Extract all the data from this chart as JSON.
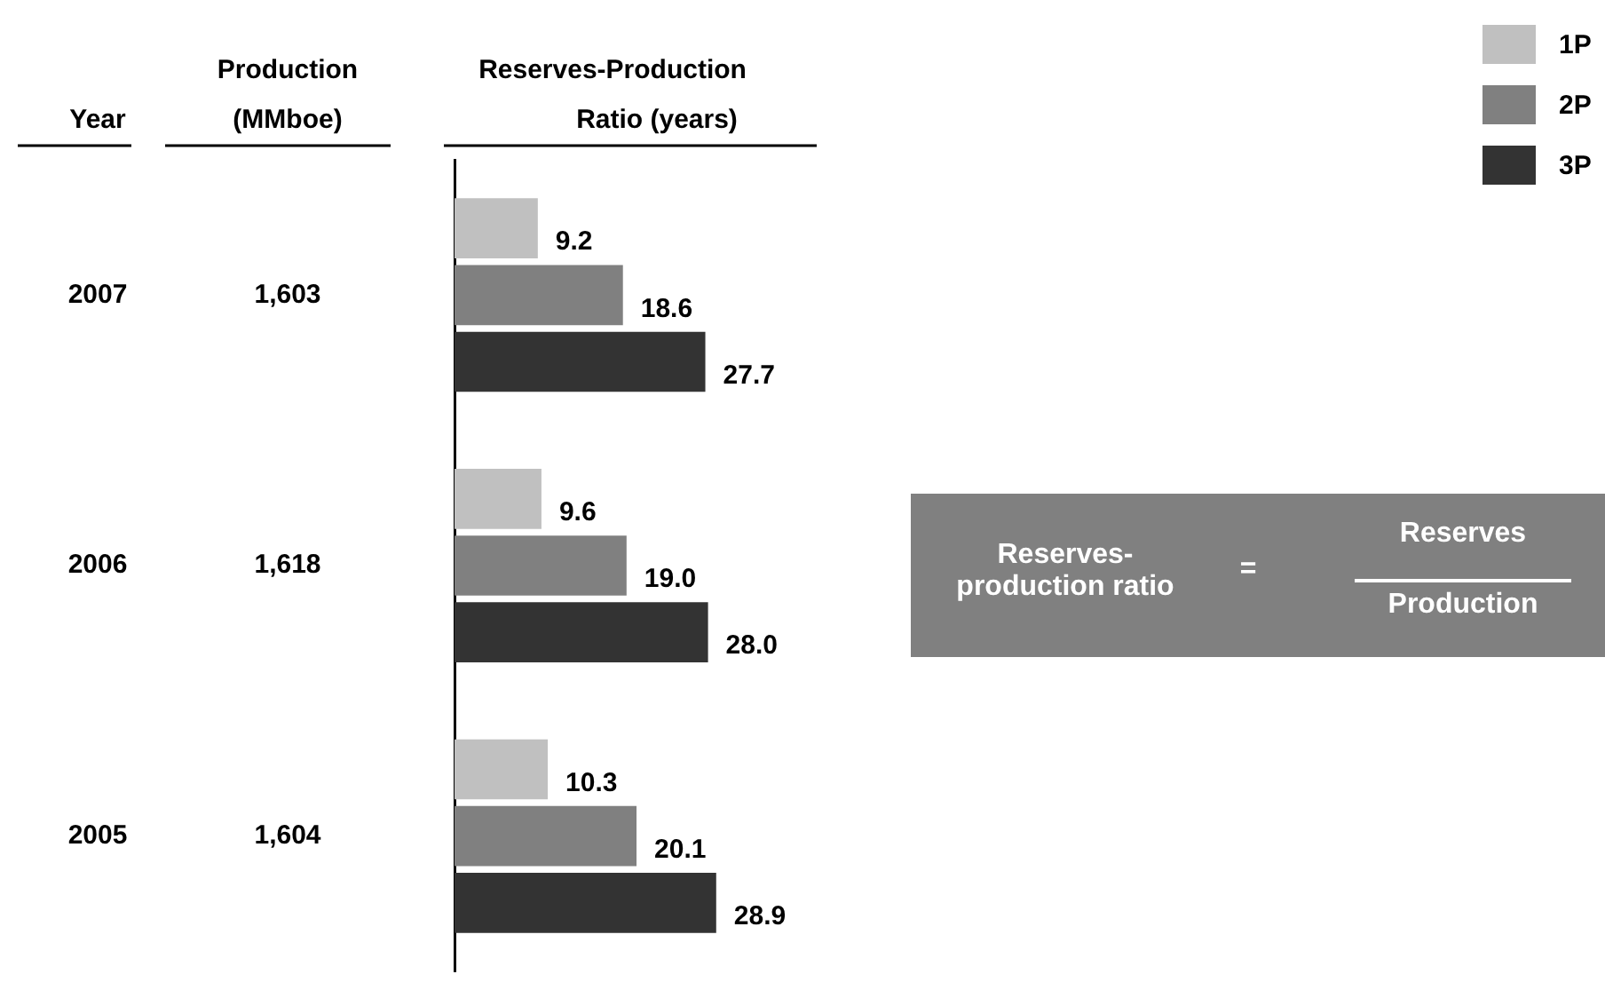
{
  "chart_data": {
    "type": "bar",
    "orientation": "horizontal",
    "ylabel": "Year",
    "xlabel": "Reserves-Production\nRatio (years)",
    "categories": [
      "2007",
      "2006",
      "2005"
    ],
    "series": [
      {
        "name": "1P",
        "color": "#c0c0c0",
        "values": [
          9.2,
          9.6,
          10.3
        ],
        "value_labels": [
          "9.2",
          "9.6",
          "10.3"
        ]
      },
      {
        "name": "2P",
        "color": "#808080",
        "values": [
          18.6,
          19.0,
          20.1
        ],
        "value_labels": [
          "18.6",
          "19.0",
          "20.1"
        ]
      },
      {
        "name": "3P",
        "color": "#333333",
        "values": [
          27.7,
          28.0,
          28.9
        ],
        "value_labels": [
          "27.7",
          "28.0",
          "28.9"
        ]
      }
    ],
    "legend": "top right",
    "tick_labels": "y",
    "annotations": [
      "Production\n(MMboe)",
      "1,603",
      "1,618",
      "1,604",
      "Reserves-\nproduction ratio",
      "=",
      "Reserves",
      "Production"
    ]
  }
}
